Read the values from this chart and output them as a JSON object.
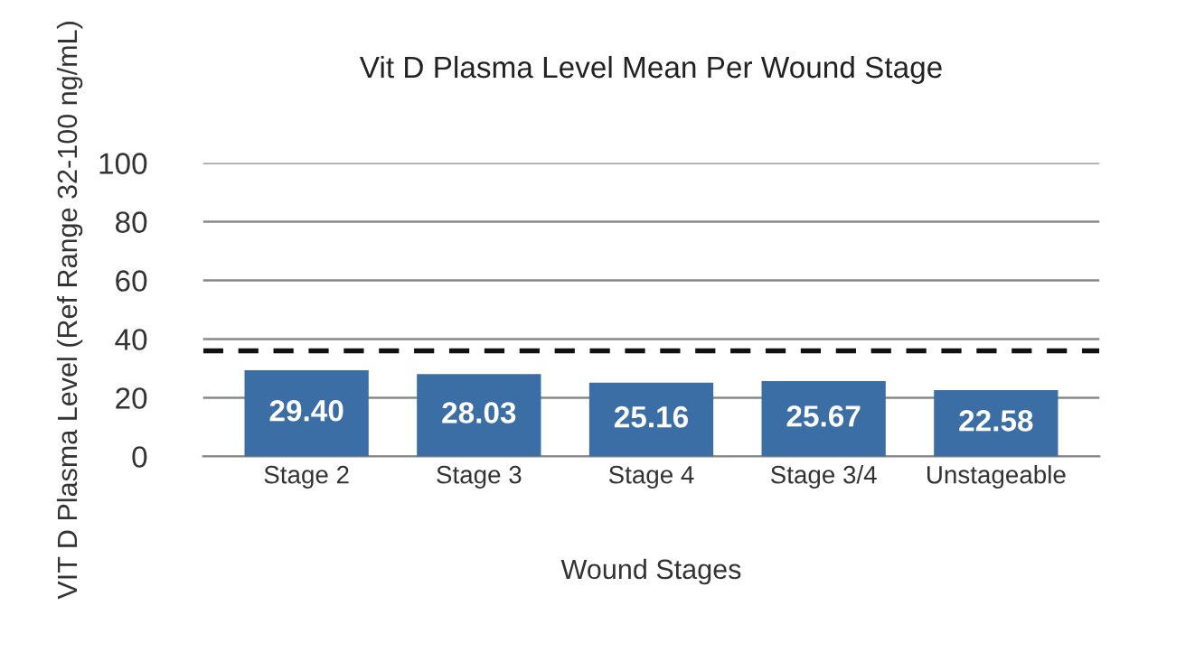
{
  "chart_data": {
    "type": "bar",
    "title": "Vit D Plasma Level Mean Per Wound Stage",
    "xlabel": "Wound Stages",
    "ylabel": "VIT D Plasma Level (Ref Range 32-100 ng/mL)",
    "categories": [
      "Stage 2",
      "Stage 3",
      "Stage 4",
      "Stage 3/4",
      "Unstageable"
    ],
    "values": [
      29.4,
      28.03,
      25.16,
      25.67,
      22.58
    ],
    "value_labels": [
      "29.40",
      "28.03",
      "25.16",
      "25.67",
      "22.58"
    ],
    "color": "#3b6ea5",
    "ylim": [
      0,
      100
    ],
    "yticks": [
      0,
      20,
      40,
      60,
      80,
      100
    ],
    "grid": "y",
    "ref_lines": [
      {
        "axis": "y",
        "value": 36,
        "color": "#111111",
        "line_style": "dashed"
      }
    ]
  }
}
